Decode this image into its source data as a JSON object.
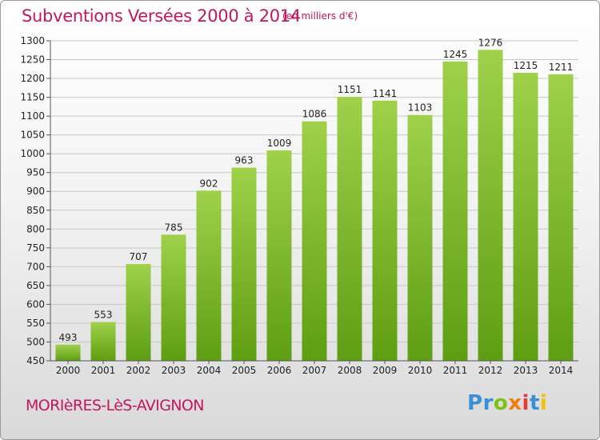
{
  "header": {
    "title": "Subventions Versées 2000 à 2014",
    "unit_note": "(en milliers d'€)"
  },
  "footer": {
    "commune": "MORIèRES-LèS-AVIGNON",
    "brand_letters": [
      "P",
      "r",
      "o",
      "x",
      "i",
      "t",
      "i"
    ],
    "brand_colors": [
      "#3a8fd6",
      "#3a8fd6",
      "#7cc21b",
      "#f07d10",
      "#e53b3b",
      "#3a8fd6",
      "#f2c200"
    ]
  },
  "chart_data": {
    "type": "bar",
    "title": "Subventions Versées 2000 à 2014",
    "subtitle": "(en milliers d'€)",
    "xlabel": "",
    "ylabel": "",
    "categories": [
      "2000",
      "2001",
      "2002",
      "2003",
      "2004",
      "2005",
      "2006",
      "2007",
      "2008",
      "2009",
      "2010",
      "2011",
      "2012",
      "2013",
      "2014"
    ],
    "values": [
      493,
      553,
      707,
      785,
      902,
      963,
      1009,
      1086,
      1151,
      1141,
      1103,
      1245,
      1276,
      1215,
      1211
    ],
    "ylim": [
      450,
      1300
    ],
    "yticks": [
      450,
      500,
      550,
      600,
      650,
      700,
      750,
      800,
      850,
      900,
      950,
      1000,
      1050,
      1100,
      1150,
      1200,
      1250,
      1300
    ],
    "grid": true,
    "bar_color_top": "#9fd14a",
    "bar_color_bottom": "#5e9e12"
  }
}
